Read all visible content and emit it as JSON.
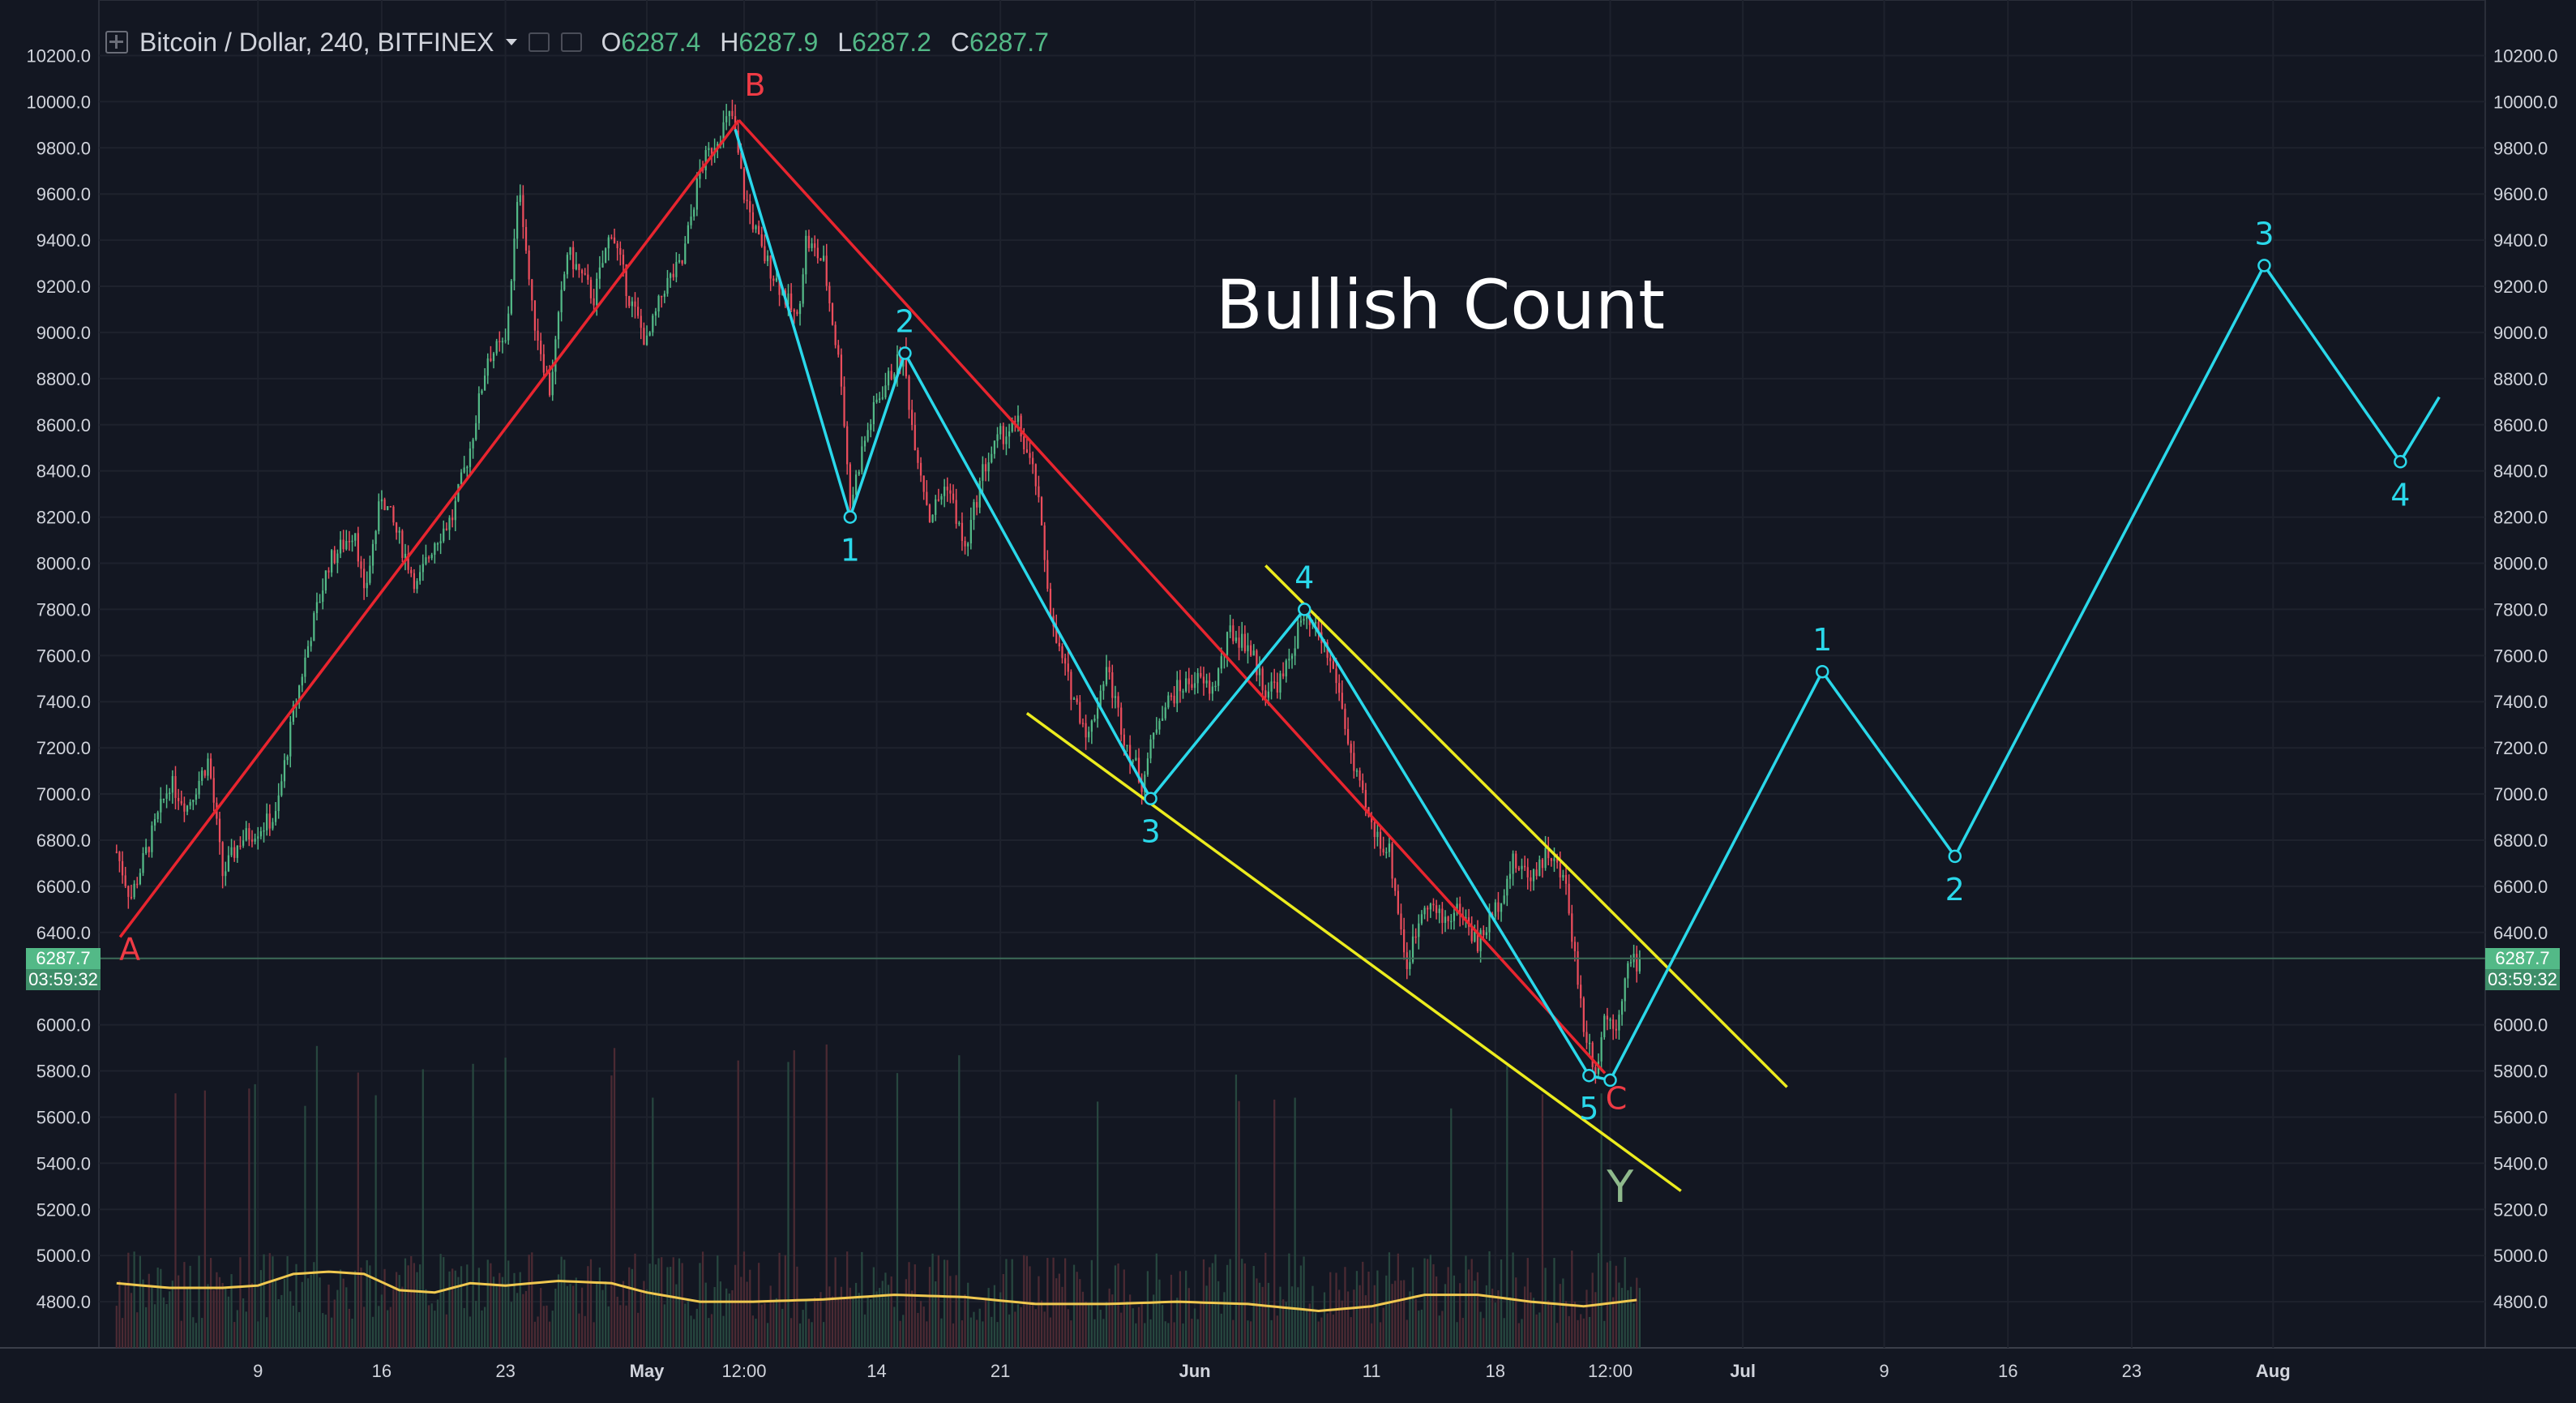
{
  "header": {
    "symbol": "Bitcoin / Dollar, 240, BITFINEX",
    "o_label": "O",
    "o_value": "6287.4",
    "h_label": "H",
    "h_value": "6287.9",
    "l_label": "L",
    "l_value": "6287.2",
    "c_label": "C",
    "c_value": "6287.7"
  },
  "price_tag": {
    "price": "6287.7",
    "countdown": "03:59:32"
  },
  "annotation": "Bullish Count",
  "colors": {
    "background": "#131722",
    "up_candle": "#53b987",
    "down_candle": "#eb4d5c",
    "cyan_wave": "#2ad8ea",
    "red_line": "#e8252f",
    "yellow_channel": "#ecec1e",
    "volume_ma": "#f0c850",
    "label_green": "#8fb98c"
  },
  "chart_data": {
    "type": "candlestick",
    "title": "Bitcoin / Dollar, 240, BITFINEX",
    "ylim": [
      4600,
      10300
    ],
    "y_ticks": [
      "10200.0",
      "10000.0",
      "9800.0",
      "9600.0",
      "9400.0",
      "9200.0",
      "9000.0",
      "8800.0",
      "8600.0",
      "8400.0",
      "8200.0",
      "8000.0",
      "7800.0",
      "7600.0",
      "7400.0",
      "7200.0",
      "7000.0",
      "6800.0",
      "6600.0",
      "6400.0",
      "6000.0",
      "5800.0",
      "5600.0",
      "5400.0",
      "5200.0",
      "5000.0",
      "4800.0"
    ],
    "x_ticks": [
      "9",
      "16",
      "23",
      "May",
      "12:00",
      "14",
      "21",
      "Jun",
      "11",
      "18",
      "12:00",
      "Jul",
      "9",
      "16",
      "23",
      "Aug"
    ],
    "x_tick_days": [
      8,
      15,
      22,
      30,
      35.5,
      43,
      50,
      61,
      71,
      78,
      84.5,
      92,
      100,
      107,
      114,
      122
    ],
    "price_path": [
      [
        0,
        6750
      ],
      [
        0.8,
        6550
      ],
      [
        3,
        7050
      ],
      [
        4,
        6950
      ],
      [
        5.2,
        7150
      ],
      [
        6,
        6650
      ],
      [
        7,
        6800
      ],
      [
        9,
        6900
      ],
      [
        10,
        7350
      ],
      [
        11,
        7700
      ],
      [
        12,
        8000
      ],
      [
        13.5,
        8150
      ],
      [
        14,
        7850
      ],
      [
        15,
        8300
      ],
      [
        16,
        8100
      ],
      [
        17,
        7900
      ],
      [
        18,
        8100
      ],
      [
        19,
        8200
      ],
      [
        20,
        8500
      ],
      [
        21,
        8900
      ],
      [
        22,
        8950
      ],
      [
        22.8,
        9650
      ],
      [
        23.5,
        9100
      ],
      [
        24.5,
        8750
      ],
      [
        25.5,
        9350
      ],
      [
        27,
        9150
      ],
      [
        28,
        9450
      ],
      [
        29,
        9150
      ],
      [
        30,
        8950
      ],
      [
        31,
        9200
      ],
      [
        32,
        9300
      ],
      [
        33,
        9700
      ],
      [
        34,
        9850
      ],
      [
        34.8,
        9950
      ],
      [
        35.5,
        9600
      ],
      [
        36.5,
        9350
      ],
      [
        37.5,
        9200
      ],
      [
        38.5,
        9050
      ],
      [
        39,
        9400
      ],
      [
        40,
        9300
      ],
      [
        41,
        8800
      ],
      [
        41.5,
        8250
      ],
      [
        42.2,
        8500
      ],
      [
        43,
        8700
      ],
      [
        44,
        8850
      ],
      [
        44.5,
        8900
      ],
      [
        45,
        8600
      ],
      [
        46,
        8200
      ],
      [
        47,
        8350
      ],
      [
        48,
        8050
      ],
      [
        49,
        8400
      ],
      [
        50,
        8550
      ],
      [
        51,
        8600
      ],
      [
        52,
        8350
      ],
      [
        53,
        7700
      ],
      [
        54,
        7450
      ],
      [
        55,
        7250
      ],
      [
        56,
        7550
      ],
      [
        57,
        7250
      ],
      [
        58,
        7050
      ],
      [
        59,
        7350
      ],
      [
        60,
        7450
      ],
      [
        61,
        7500
      ],
      [
        62,
        7450
      ],
      [
        63,
        7700
      ],
      [
        64,
        7650
      ],
      [
        65,
        7450
      ],
      [
        66,
        7500
      ],
      [
        67,
        7750
      ],
      [
        68,
        7700
      ],
      [
        69,
        7500
      ],
      [
        70,
        7100
      ],
      [
        71,
        6850
      ],
      [
        72,
        6750
      ],
      [
        73,
        6250
      ],
      [
        74,
        6550
      ],
      [
        75,
        6450
      ],
      [
        76,
        6500
      ],
      [
        77,
        6350
      ],
      [
        78,
        6500
      ],
      [
        79,
        6700
      ],
      [
        80,
        6650
      ],
      [
        81,
        6750
      ],
      [
        82,
        6600
      ],
      [
        83,
        6000
      ],
      [
        83.7,
        5800
      ],
      [
        84.2,
        6050
      ],
      [
        84.8,
        6000
      ],
      [
        85.5,
        6250
      ],
      [
        86.3,
        6288
      ]
    ],
    "volume_ma": [
      [
        0,
        4880
      ],
      [
        3,
        4860
      ],
      [
        6,
        4860
      ],
      [
        8,
        4870
      ],
      [
        10,
        4920
      ],
      [
        12,
        4930
      ],
      [
        14,
        4920
      ],
      [
        16,
        4850
      ],
      [
        18,
        4840
      ],
      [
        20,
        4880
      ],
      [
        22,
        4870
      ],
      [
        25,
        4890
      ],
      [
        28,
        4880
      ],
      [
        30,
        4840
      ],
      [
        33,
        4800
      ],
      [
        36,
        4800
      ],
      [
        40,
        4810
      ],
      [
        44,
        4830
      ],
      [
        48,
        4820
      ],
      [
        52,
        4790
      ],
      [
        56,
        4790
      ],
      [
        60,
        4800
      ],
      [
        64,
        4790
      ],
      [
        68,
        4760
      ],
      [
        71,
        4780
      ],
      [
        74,
        4830
      ],
      [
        77,
        4830
      ],
      [
        80,
        4800
      ],
      [
        83,
        4780
      ],
      [
        86.3,
        4810
      ]
    ],
    "wave_path": [
      {
        "day": 35.0,
        "price": 9880,
        "label": ""
      },
      {
        "day": 41.5,
        "price": 8200,
        "label": "1"
      },
      {
        "day": 44.6,
        "price": 8910,
        "label": "2"
      },
      {
        "day": 58.5,
        "price": 6980,
        "label": "3"
      },
      {
        "day": 67.2,
        "price": 7800,
        "label": "4"
      },
      {
        "day": 83.3,
        "price": 5780,
        "label": "5"
      },
      {
        "day": 84.5,
        "price": 5760,
        "label": ""
      },
      {
        "day": 96.5,
        "price": 7530,
        "label": "1"
      },
      {
        "day": 104,
        "price": 6730,
        "label": "2"
      },
      {
        "day": 121.5,
        "price": 9290,
        "label": "3"
      },
      {
        "day": 129.2,
        "price": 8440,
        "label": "4"
      },
      {
        "day": 131.4,
        "price": 8720,
        "label": ""
      }
    ],
    "red_line": [
      {
        "day": 0.2,
        "price": 6380,
        "label": "A"
      },
      {
        "day": 35.2,
        "price": 9920,
        "label": "B"
      },
      {
        "day": 84.2,
        "price": 5790,
        "label": "C"
      }
    ],
    "yellow_channel": [
      {
        "from": [
          65.0,
          7990
        ],
        "to": [
          94.5,
          5730
        ]
      },
      {
        "from": [
          51.5,
          7350
        ],
        "to": [
          88.5,
          5280
        ]
      }
    ],
    "extra_labels": [
      {
        "day": 84.6,
        "price": 5310,
        "label": "Y"
      }
    ],
    "last_price": 6287.7
  }
}
